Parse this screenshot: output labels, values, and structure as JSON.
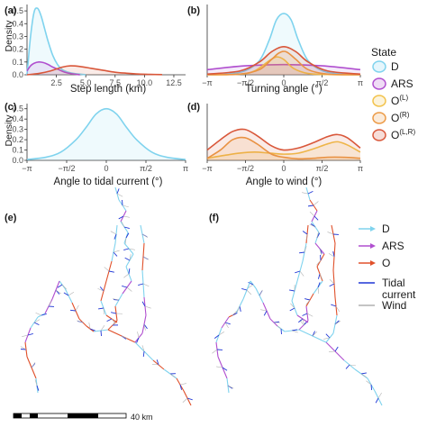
{
  "colors": {
    "D": "#7fd3ee",
    "ARS": "#b04fcf",
    "O_L": "#f2c24a",
    "O_R": "#ec9a45",
    "O_LR": "#d9573a",
    "O_track": "#e0502a",
    "tidal": "#1f36d6",
    "wind": "#b0b0b0"
  },
  "panels": {
    "a": {
      "label": "(a)",
      "ylabel": "Density",
      "xlabel": "Step length (km)",
      "xticks": [
        "2.5",
        "5.0",
        "7.5",
        "10.0",
        "12.5"
      ],
      "yticks": [
        "0.0",
        "0.1",
        "0.2",
        "0.3",
        "0.4",
        "0.5"
      ]
    },
    "b": {
      "label": "(b)",
      "xlabel": "Turning angle (°)",
      "xticks": [
        "−π",
        "−π/2",
        "0",
        "π/2",
        "π"
      ]
    },
    "c": {
      "label": "(c)",
      "ylabel": "Density",
      "xlabel": "Angle to tidal current (°)",
      "xticks": [
        "−π",
        "−π/2",
        "0",
        "π/2",
        "π"
      ],
      "yticks": [
        "0.0",
        "0.1",
        "0.2",
        "0.3",
        "0.4",
        "0.5"
      ]
    },
    "d": {
      "label": "(d)",
      "xlabel": "Angle to wind (°)",
      "xticks": [
        "−π",
        "−π/2",
        "0",
        "π/2",
        "π"
      ]
    },
    "e": {
      "label": "(e)",
      "scale_label": "40 km"
    },
    "f": {
      "label": "(f)"
    }
  },
  "legend_state": {
    "title": "State",
    "items": [
      {
        "key": "D",
        "label": "D"
      },
      {
        "key": "ARS",
        "label": "ARS"
      },
      {
        "key": "O_L",
        "label": "O",
        "sup": "(L)"
      },
      {
        "key": "O_R",
        "label": "O",
        "sup": "(R)"
      },
      {
        "key": "O_LR",
        "label": "O",
        "sup": "(L,R)"
      }
    ]
  },
  "legend_track": {
    "items": [
      {
        "key": "D",
        "label": "D"
      },
      {
        "key": "ARS",
        "label": "ARS"
      },
      {
        "key": "O_track",
        "label": "O"
      },
      {
        "key": "tidal",
        "label": "Tidal",
        "label2": "current"
      },
      {
        "key": "wind",
        "label": "Wind"
      }
    ]
  },
  "chart_data": [
    {
      "panel": "a",
      "type": "area",
      "xlabel": "Step length (km)",
      "ylabel": "Density",
      "xlim": [
        0,
        13.5
      ],
      "ylim": [
        0,
        0.55
      ],
      "series": [
        {
          "name": "D",
          "x": [
            0,
            0.3,
            0.6,
            0.9,
            1.2,
            1.5,
            1.8,
            2.2,
            2.6,
            3.0,
            3.5,
            4.0,
            5.0
          ],
          "values": [
            0,
            0.3,
            0.49,
            0.52,
            0.46,
            0.36,
            0.26,
            0.15,
            0.08,
            0.04,
            0.02,
            0.01,
            0
          ]
        },
        {
          "name": "ARS",
          "x": [
            0,
            0.3,
            0.6,
            1.0,
            1.4,
            1.8,
            2.2,
            2.7,
            3.2,
            3.8,
            4.5
          ],
          "values": [
            0.03,
            0.07,
            0.09,
            0.1,
            0.095,
            0.08,
            0.06,
            0.04,
            0.02,
            0.008,
            0
          ]
        },
        {
          "name": "O",
          "x": [
            0,
            1.0,
            2.0,
            3.0,
            3.7,
            4.5,
            5.5,
            6.5,
            7.5,
            8.5,
            9.5,
            10.5,
            11.5
          ],
          "values": [
            0,
            0.01,
            0.03,
            0.06,
            0.07,
            0.065,
            0.05,
            0.035,
            0.02,
            0.012,
            0.006,
            0.003,
            0.001
          ]
        }
      ]
    },
    {
      "panel": "b",
      "type": "line",
      "xlabel": "Turning angle (°)",
      "xlim": [
        -3.1416,
        3.1416
      ],
      "ylim": [
        0,
        0.55
      ],
      "series": [
        {
          "name": "D",
          "x": [
            -3.14,
            -2.4,
            -1.6,
            -1.0,
            -0.6,
            -0.3,
            0,
            0.3,
            0.6,
            1.0,
            1.6,
            2.4,
            3.14
          ],
          "values": [
            0,
            0.005,
            0.03,
            0.11,
            0.27,
            0.43,
            0.48,
            0.43,
            0.27,
            0.11,
            0.03,
            0.005,
            0
          ]
        },
        {
          "name": "ARS",
          "x": [
            -3.14,
            -1.6,
            0,
            1.6,
            3.14
          ],
          "values": [
            0.04,
            0.07,
            0.08,
            0.07,
            0.04
          ]
        },
        {
          "name": "O (L)",
          "x": [
            -3.14,
            -1.8,
            -1.2,
            -0.6,
            -0.3,
            0,
            0.4,
            1.0,
            1.8,
            3.14
          ],
          "values": [
            0,
            0.005,
            0.03,
            0.11,
            0.14,
            0.12,
            0.05,
            0.01,
            0.002,
            0
          ]
        },
        {
          "name": "O (R)",
          "x": [
            -3.14,
            -1.8,
            -1.0,
            -0.5,
            -0.2,
            0.1,
            0.5,
            1.0,
            1.8,
            3.14
          ],
          "values": [
            0,
            0.005,
            0.04,
            0.12,
            0.17,
            0.18,
            0.12,
            0.04,
            0.005,
            0
          ]
        },
        {
          "name": "O (L,R)",
          "x": [
            -3.14,
            -1.8,
            -1.0,
            -0.5,
            0,
            0.5,
            1.0,
            1.8,
            3.14
          ],
          "values": [
            0.005,
            0.03,
            0.1,
            0.18,
            0.22,
            0.18,
            0.1,
            0.03,
            0.005
          ]
        }
      ]
    },
    {
      "panel": "c",
      "type": "area",
      "xlabel": "Angle to tidal current (°)",
      "ylabel": "Density",
      "xlim": [
        -3.1416,
        3.1416
      ],
      "ylim": [
        0,
        0.55
      ],
      "series": [
        {
          "name": "D",
          "x": [
            -3.14,
            -2.4,
            -1.8,
            -1.2,
            -0.8,
            -0.4,
            0,
            0.4,
            0.8,
            1.2,
            1.8,
            2.4,
            3.14
          ],
          "values": [
            0.008,
            0.03,
            0.08,
            0.2,
            0.32,
            0.45,
            0.5,
            0.45,
            0.32,
            0.2,
            0.08,
            0.03,
            0.008
          ]
        }
      ]
    },
    {
      "panel": "d",
      "type": "line",
      "xlabel": "Angle to wind (°)",
      "xlim": [
        -3.1416,
        3.1416
      ],
      "ylim": [
        0,
        0.55
      ],
      "series": [
        {
          "name": "O (L)",
          "x": [
            -3.14,
            -2.4,
            -1.8,
            -1.2,
            -0.6,
            0,
            0.6,
            1.2,
            1.8,
            2.2,
            2.6,
            3.14
          ],
          "values": [
            0.02,
            0.05,
            0.07,
            0.08,
            0.07,
            0.06,
            0.07,
            0.11,
            0.16,
            0.18,
            0.15,
            0.08
          ]
        },
        {
          "name": "O (R)",
          "x": [
            -3.14,
            -2.6,
            -2.1,
            -1.6,
            -1.1,
            -0.5,
            0,
            0.6,
            1.2,
            1.8,
            2.4,
            3.14
          ],
          "values": [
            0.02,
            0.1,
            0.2,
            0.22,
            0.16,
            0.06,
            0.03,
            0.015,
            0.02,
            0.03,
            0.03,
            0.02
          ]
        },
        {
          "name": "O (L,R)",
          "x": [
            -3.14,
            -2.6,
            -2.1,
            -1.6,
            -1.1,
            -0.5,
            0,
            0.6,
            1.2,
            1.8,
            2.2,
            2.6,
            3.14
          ],
          "values": [
            0.1,
            0.2,
            0.28,
            0.3,
            0.24,
            0.14,
            0.1,
            0.12,
            0.17,
            0.23,
            0.25,
            0.22,
            0.12
          ]
        }
      ]
    }
  ]
}
